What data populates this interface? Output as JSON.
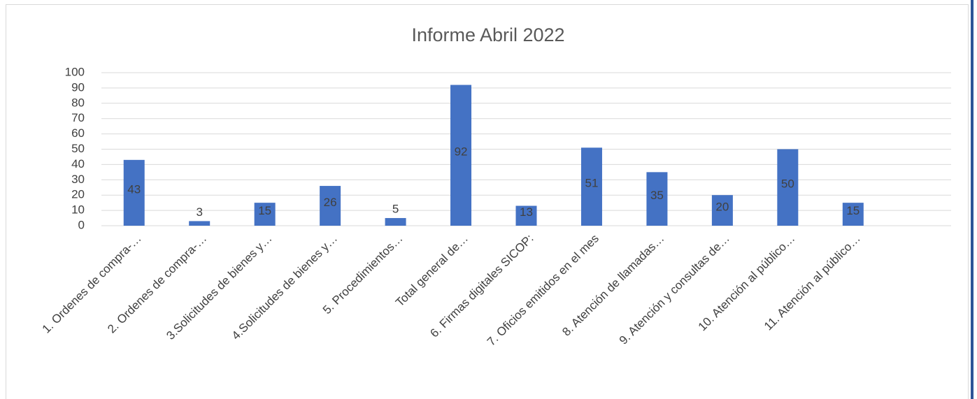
{
  "chart_data": {
    "type": "bar",
    "title": "Informe Abril 2022",
    "categories": [
      "1. Ordenes de compra-…",
      "2. Ordenes de compra-…",
      "3.Solicitudes de bienes y…",
      "4.Solicitudes de bienes y…",
      "5. Procedimientos…",
      "Total general de…",
      "6. Firmas digitales SICOP:",
      "7. Oficios emitidos en el mes",
      "8. Atención de llamadas…",
      "9. Atención y consultas de…",
      "10. Atención al público…",
      "11. Atención al público…",
      null
    ],
    "values": [
      43,
      3,
      15,
      26,
      5,
      92,
      13,
      51,
      35,
      20,
      50,
      15,
      null
    ],
    "color": "#4472c4",
    "ylim": [
      0,
      100
    ],
    "yticks": [
      0,
      10,
      20,
      30,
      40,
      50,
      60,
      70,
      80,
      90,
      100
    ],
    "grid": true
  }
}
